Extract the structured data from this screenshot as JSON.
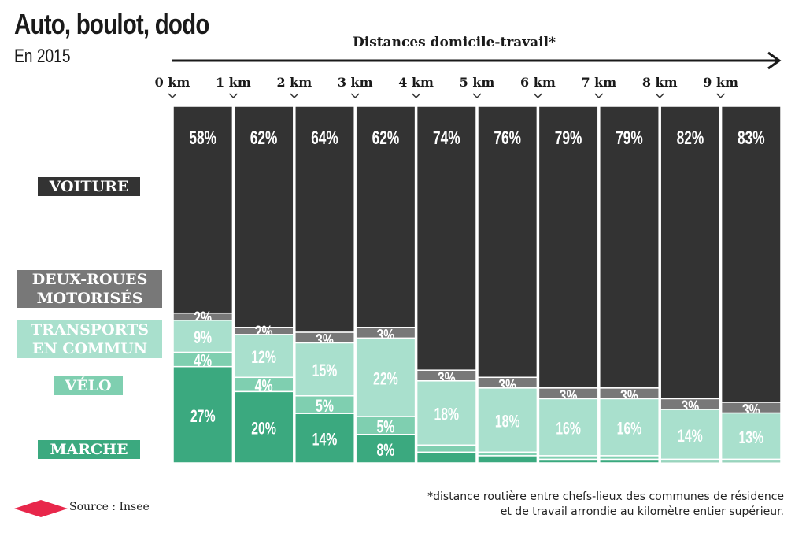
{
  "chart_data": {
    "type": "bar",
    "stacked": true,
    "title": "Auto, boulot, dodo",
    "subtitle": "En 2015",
    "xlabel": "Distances domicile-travail*",
    "categories": [
      "0 km",
      "1 km",
      "2 km",
      "3 km",
      "4 km",
      "5 km",
      "6 km",
      "7 km",
      "8 km",
      "9 km"
    ],
    "series": [
      {
        "name": "VOITURE",
        "color": "#333333",
        "values": [
          58,
          62,
          64,
          62,
          74,
          76,
          79,
          79,
          82,
          83
        ],
        "labels": [
          "58%",
          "62%",
          "64%",
          "62%",
          "74%",
          "76%",
          "79%",
          "79%",
          "82%",
          "83%"
        ]
      },
      {
        "name": "DEUX-ROUES MOTORISÉS",
        "color": "#787878",
        "values": [
          2,
          2,
          3,
          3,
          3,
          3,
          3,
          3,
          3,
          3
        ],
        "labels": [
          "2%",
          "2%",
          "3%",
          "3%",
          "3%",
          "3%",
          "3%",
          "3%",
          "3%",
          "3%"
        ]
      },
      {
        "name": "TRANSPORTS EN COMMUN",
        "color": "#a9e0cd",
        "values": [
          9,
          12,
          15,
          22,
          18,
          18,
          16,
          16,
          14,
          13
        ],
        "labels": [
          "9%",
          "12%",
          "15%",
          "22%",
          "18%",
          "18%",
          "16%",
          "16%",
          "14%",
          "13%"
        ]
      },
      {
        "name": "VÉLO",
        "color": "#7fcfb0",
        "values": [
          4,
          4,
          5,
          5,
          2,
          1,
          1,
          1,
          0.5,
          0.5
        ],
        "labels": [
          "4%",
          "4%",
          "5%",
          "5%",
          null,
          null,
          null,
          null,
          null,
          null
        ]
      },
      {
        "name": "MARCHE",
        "color": "#3ba97f",
        "values": [
          27,
          20,
          14,
          8,
          3,
          2,
          1,
          1,
          0.5,
          0.5
        ],
        "labels": [
          "27%",
          "20%",
          "14%",
          "8%",
          null,
          null,
          null,
          null,
          null,
          null
        ]
      }
    ],
    "ylim": [
      0,
      100
    ],
    "legend": "left"
  },
  "footer": {
    "source": "Source : Insee",
    "source_color": "#e8274b",
    "note_line1": "*distance routière entre chefs-lieux des communes de résidence",
    "note_line2": "et de travail arrondie au kilomètre entier supérieur."
  },
  "legend_labels": {
    "voiture": "VOITURE",
    "drm1": "DEUX-ROUES",
    "drm2": "MOTORISÉS",
    "tc1": "TRANSPORTS",
    "tc2": "EN COMMUN",
    "velo": "VÉLO",
    "marche": "MARCHE"
  }
}
